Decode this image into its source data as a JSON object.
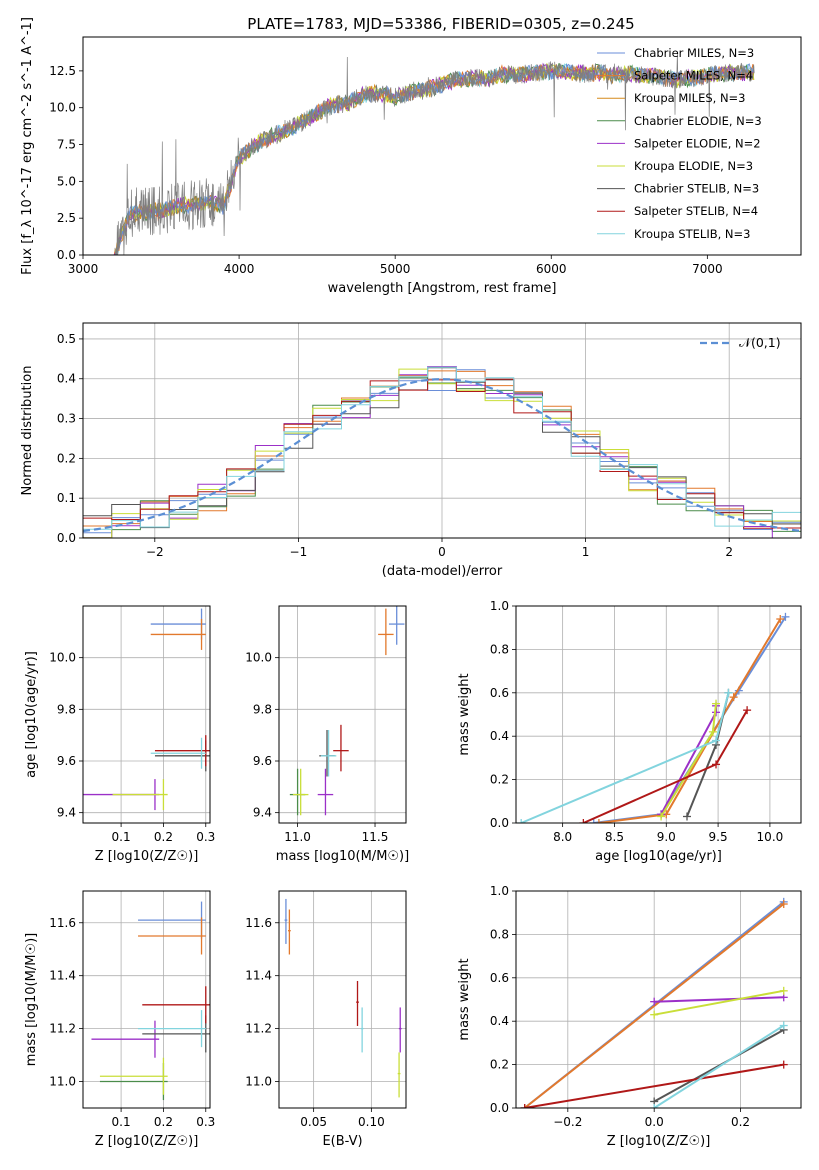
{
  "title": "PLATE=1783, MJD=53386, FIBERID=0305, z=0.245",
  "legend_labels": [
    "Chabrier MILES, N_SSP=3",
    "Salpeter MILES, N_SSP=4",
    "Kroupa MILES, N_SSP=3",
    "Chabrier ELODIE, N_SSP=3",
    "Salpeter ELODIE, N_SSP=2",
    "Kroupa ELODIE, N_SSP=3",
    "Chabrier STELIB, N_SSP=3",
    "Salpeter STELIB, N_SSP=4",
    "Kroupa STELIB, N_SSP=3"
  ],
  "series_colors": [
    "#6a8ed8",
    "#e2792d",
    "#d68a1c",
    "#4a8c4a",
    "#9b30c8",
    "#c9de38",
    "#555555",
    "#b01818",
    "#82d4de"
  ],
  "chart_data": [
    {
      "id": "spectrum",
      "type": "line",
      "xlabel": "wavelength [Angstrom, rest frame]",
      "ylabel": "Flux [f_λ 10^-17 erg cm^-2 s^-1 A^-1]",
      "xlim": [
        3000,
        7600
      ],
      "ylim": [
        0,
        14.8
      ],
      "xticks": [
        3000,
        4000,
        5000,
        6000,
        7000
      ],
      "yticks": [
        0.0,
        2.5,
        5.0,
        7.5,
        10.0,
        12.5
      ],
      "grid": false,
      "legend_position": "top-right",
      "x": [
        3200,
        3300,
        3400,
        3500,
        3600,
        3700,
        3800,
        3900,
        4000,
        4100,
        4200,
        4300,
        4400,
        4500,
        4600,
        4700,
        4800,
        4900,
        5000,
        5100,
        5200,
        5300,
        5400,
        5500,
        5600,
        5700,
        5800,
        5900,
        6000,
        6100,
        6200,
        6300,
        6400,
        6500,
        6600,
        6700,
        6800,
        6900,
        7000,
        7100,
        7200,
        7300
      ],
      "model": [
        0.0,
        2.8,
        2.9,
        3.0,
        3.3,
        3.4,
        3.6,
        3.3,
        6.5,
        7.5,
        8.0,
        8.4,
        9.0,
        9.6,
        10.2,
        10.3,
        10.9,
        11.0,
        10.7,
        11.1,
        11.2,
        11.6,
        11.9,
        12.0,
        12.0,
        12.3,
        12.2,
        12.4,
        12.5,
        12.4,
        12.3,
        12.4,
        12.2,
        12.3,
        12.2,
        12.1,
        11.9,
        12.0,
        12.2,
        12.3,
        12.4,
        12.4
      ]
    },
    {
      "id": "residuals",
      "type": "line",
      "xlabel": "(data-model)/error",
      "ylabel": "Normed distribution",
      "xlim": [
        -2.5,
        2.5
      ],
      "ylim": [
        0,
        0.54
      ],
      "xticks": [
        -2,
        -1,
        0,
        1,
        2
      ],
      "yticks": [
        0.0,
        0.1,
        0.2,
        0.3,
        0.4,
        0.5
      ],
      "grid": true,
      "legend_position": "top-right",
      "legend_label": "𝒩(0,1)",
      "step_x": [
        -2.5,
        -2.3,
        -2.1,
        -1.9,
        -1.7,
        -1.5,
        -1.3,
        -1.1,
        -0.9,
        -0.7,
        -0.5,
        -0.3,
        -0.1,
        0.1,
        0.3,
        0.5,
        0.7,
        0.9,
        1.1,
        1.3,
        1.5,
        1.7,
        1.9,
        2.1,
        2.3
      ],
      "step_y": [
        0.03,
        0.05,
        0.06,
        0.08,
        0.1,
        0.14,
        0.2,
        0.26,
        0.3,
        0.33,
        0.36,
        0.39,
        0.4,
        0.39,
        0.37,
        0.34,
        0.3,
        0.24,
        0.19,
        0.15,
        0.12,
        0.09,
        0.06,
        0.04,
        0.03
      ]
    },
    {
      "id": "age-vs-Z",
      "type": "scatter",
      "xlabel": "Z [log10(Z/Z☉)]",
      "ylabel": "age [log10(age/yr)]",
      "xlim": [
        0.01,
        0.31
      ],
      "ylim": [
        9.36,
        10.2
      ],
      "xticks": [
        0.1,
        0.2,
        0.3
      ],
      "yticks": [
        9.4,
        9.6,
        9.8,
        10.0
      ],
      "grid": true,
      "points": [
        {
          "s": 0,
          "x": 0.29,
          "y": 10.13
        },
        {
          "s": 1,
          "x": 0.29,
          "y": 10.09
        },
        {
          "s": 4,
          "x": 0.18,
          "y": 9.47
        },
        {
          "s": 5,
          "x": 0.2,
          "y": 9.47
        },
        {
          "s": 6,
          "x": 0.3,
          "y": 9.62
        },
        {
          "s": 7,
          "x": 0.3,
          "y": 9.64
        },
        {
          "s": 8,
          "x": 0.29,
          "y": 9.63
        },
        {
          "s": 9,
          "x": 0.28,
          "y": 10.0
        }
      ]
    },
    {
      "id": "age-vs-mass",
      "type": "scatter",
      "xlabel": "mass [log10(M/M☉)]",
      "ylabel": "",
      "xlim": [
        10.88,
        11.7
      ],
      "ylim": [
        9.36,
        10.2
      ],
      "xticks": [
        11.0,
        11.5
      ],
      "yticks": [
        9.4,
        9.6,
        9.8,
        10.0
      ],
      "grid": true,
      "points": [
        {
          "s": 0,
          "x": 11.64,
          "y": 10.13
        },
        {
          "s": 1,
          "x": 11.57,
          "y": 10.09
        },
        {
          "s": 3,
          "x": 11.0,
          "y": 9.47
        },
        {
          "s": 4,
          "x": 11.18,
          "y": 9.47
        },
        {
          "s": 5,
          "x": 11.02,
          "y": 9.47
        },
        {
          "s": 6,
          "x": 11.19,
          "y": 9.62
        },
        {
          "s": 7,
          "x": 11.28,
          "y": 9.64
        },
        {
          "s": 8,
          "x": 11.2,
          "y": 9.62
        },
        {
          "s": 9,
          "x": 11.51,
          "y": 10.0
        }
      ]
    },
    {
      "id": "massweight-vs-age",
      "type": "line",
      "xlabel": "age [log10(age/yr)]",
      "ylabel": "mass weight",
      "xlim": [
        7.55,
        10.3
      ],
      "ylim": [
        0,
        1.0
      ],
      "xticks": [
        8.0,
        8.5,
        9.0,
        9.5,
        10.0
      ],
      "yticks": [
        0.0,
        0.2,
        0.4,
        0.6,
        0.8,
        1.0
      ],
      "grid": true,
      "series": [
        {
          "s": 0,
          "x": [
            8.3,
            8.95,
            9.7,
            10.15
          ],
          "y": [
            0.0,
            0.04,
            0.61,
            0.95
          ]
        },
        {
          "s": 1,
          "x": [
            8.35,
            9.0,
            9.65,
            10.1
          ],
          "y": [
            0.0,
            0.04,
            0.58,
            0.94
          ]
        },
        {
          "s": 4,
          "x": [
            8.95,
            9.48,
            9.48
          ],
          "y": [
            0.04,
            0.51,
            0.54
          ]
        },
        {
          "s": 5,
          "x": [
            8.95,
            9.45,
            9.48
          ],
          "y": [
            0.03,
            0.42,
            0.55
          ]
        },
        {
          "s": 6,
          "x": [
            9.2,
            9.48,
            9.6
          ],
          "y": [
            0.03,
            0.36,
            0.6
          ]
        },
        {
          "s": 7,
          "x": [
            8.2,
            9.48,
            9.78
          ],
          "y": [
            0.0,
            0.27,
            0.52
          ]
        },
        {
          "s": 8,
          "x": [
            7.6,
            9.48,
            9.6
          ],
          "y": [
            0.0,
            0.38,
            0.6
          ]
        },
        {
          "s": 9,
          "x": [
            8.5,
            9.48,
            9.6,
            10.1
          ],
          "y": [
            0.0,
            0.06,
            0.22,
            0.69
          ]
        }
      ]
    },
    {
      "id": "mass-vs-Z",
      "type": "scatter",
      "xlabel": "Z [log10(Z/Z☉)]",
      "ylabel": "mass [log10(M/M☉)]",
      "xlim": [
        0.01,
        0.31
      ],
      "ylim": [
        10.9,
        11.72
      ],
      "xticks": [
        0.1,
        0.2,
        0.3
      ],
      "yticks": [
        11.0,
        11.2,
        11.4,
        11.6
      ],
      "grid": true,
      "points": [
        {
          "s": 0,
          "x": 0.29,
          "y": 11.61
        },
        {
          "s": 1,
          "x": 0.29,
          "y": 11.55
        },
        {
          "s": 3,
          "x": 0.2,
          "y": 11.0
        },
        {
          "s": 4,
          "x": 0.18,
          "y": 11.16
        },
        {
          "s": 5,
          "x": 0.2,
          "y": 11.02
        },
        {
          "s": 6,
          "x": 0.3,
          "y": 11.18
        },
        {
          "s": 7,
          "x": 0.3,
          "y": 11.29
        },
        {
          "s": 8,
          "x": 0.29,
          "y": 11.2
        },
        {
          "s": 9,
          "x": 0.28,
          "y": 11.5
        }
      ]
    },
    {
      "id": "mass-vs-EBV",
      "type": "scatter",
      "xlabel": "E(B-V)",
      "ylabel": "",
      "xlim": [
        0.02,
        0.13
      ],
      "ylim": [
        10.9,
        11.72
      ],
      "xticks": [
        0.05,
        0.1
      ],
      "yticks": [
        11.0,
        11.2,
        11.4,
        11.6
      ],
      "grid": true,
      "points": [
        {
          "s": 0,
          "x": 0.026,
          "y": 11.61
        },
        {
          "s": 1,
          "x": 0.029,
          "y": 11.57
        },
        {
          "s": 4,
          "x": 0.125,
          "y": 11.2
        },
        {
          "s": 5,
          "x": 0.124,
          "y": 11.03
        },
        {
          "s": 7,
          "x": 0.088,
          "y": 11.3
        },
        {
          "s": 8,
          "x": 0.092,
          "y": 11.2
        },
        {
          "s": 9,
          "x": 0.087,
          "y": 11.5
        }
      ]
    },
    {
      "id": "massweight-vs-Z",
      "type": "line",
      "xlabel": "Z [log10(Z/Z☉)]",
      "ylabel": "mass weight",
      "xlim": [
        -0.32,
        0.34
      ],
      "ylim": [
        0,
        1.0
      ],
      "xticks": [
        -0.2,
        0.0,
        0.2
      ],
      "yticks": [
        0.0,
        0.2,
        0.4,
        0.6,
        0.8,
        1.0
      ],
      "grid": true,
      "series": [
        {
          "s": 0,
          "x": [
            -0.3,
            0.3
          ],
          "y": [
            0.0,
            0.95
          ]
        },
        {
          "s": 1,
          "x": [
            -0.3,
            0.3
          ],
          "y": [
            0.0,
            0.94
          ]
        },
        {
          "s": 4,
          "x": [
            0.0,
            0.3
          ],
          "y": [
            0.49,
            0.51
          ]
        },
        {
          "s": 5,
          "x": [
            0.0,
            0.3
          ],
          "y": [
            0.43,
            0.54
          ]
        },
        {
          "s": 6,
          "x": [
            0.0,
            0.3
          ],
          "y": [
            0.03,
            0.36
          ]
        },
        {
          "s": 7,
          "x": [
            -0.3,
            0.3
          ],
          "y": [
            0.0,
            0.2
          ]
        },
        {
          "s": 8,
          "x": [
            0.0,
            0.3
          ],
          "y": [
            0.0,
            0.38
          ]
        },
        {
          "s": 9,
          "x": [
            -0.3,
            0.3
          ],
          "y": [
            0.06,
            0.22
          ]
        }
      ]
    }
  ]
}
